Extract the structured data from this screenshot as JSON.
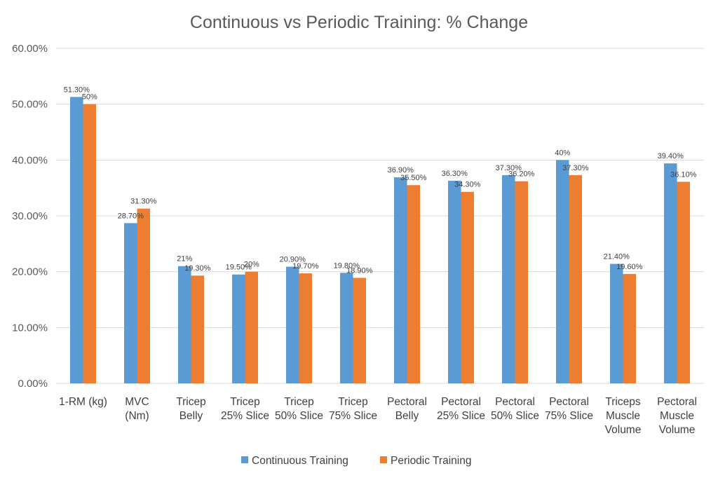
{
  "chart_data": {
    "type": "bar",
    "title": "Continuous vs Periodic Training:  % Change",
    "xlabel": "",
    "ylabel": "",
    "ylim": [
      0,
      60
    ],
    "yticks": [
      "0.00%",
      "10.00%",
      "20.00%",
      "30.00%",
      "40.00%",
      "50.00%",
      "60.00%"
    ],
    "grid": true,
    "legend_position": "bottom",
    "categories": [
      [
        "1-RM (kg)"
      ],
      [
        "MVC",
        "(Nm)"
      ],
      [
        "Tricep",
        "Belly"
      ],
      [
        "Tricep",
        "25% Slice"
      ],
      [
        "Tricep",
        "50% Slice"
      ],
      [
        "Tricep",
        "75% Slice"
      ],
      [
        "Pectoral",
        "Belly"
      ],
      [
        "Pectoral",
        "25% Slice"
      ],
      [
        "Pectoral",
        "50% Slice"
      ],
      [
        "Pectoral",
        "75% Slice"
      ],
      [
        "Triceps",
        "Muscle",
        "Volume"
      ],
      [
        "Pectoral",
        "Muscle",
        "Volume"
      ]
    ],
    "series": [
      {
        "name": "Continuous Training",
        "color": "#5b9bd5",
        "values": [
          51.3,
          28.7,
          21.0,
          19.5,
          20.9,
          19.8,
          36.9,
          36.3,
          37.3,
          40.0,
          21.4,
          39.4
        ],
        "labels": [
          "51.30%",
          "28.70%",
          "21%",
          "19.50%",
          "20.90%",
          "19.80%",
          "36.90%",
          "36.30%",
          "37.30%",
          "40%",
          "21.40%",
          "39.40%"
        ]
      },
      {
        "name": "Periodic Training",
        "color": "#ed7d31",
        "values": [
          50.0,
          31.3,
          19.3,
          20.0,
          19.7,
          18.9,
          35.5,
          34.3,
          36.2,
          37.3,
          19.6,
          36.1
        ],
        "labels": [
          "50%",
          "31.30%",
          "19.30%",
          "20%",
          "19.70%",
          "18.90%",
          "35.50%",
          "34.30%",
          "36.20%",
          "37.30%",
          "19.60%",
          "36.10%"
        ]
      }
    ]
  }
}
